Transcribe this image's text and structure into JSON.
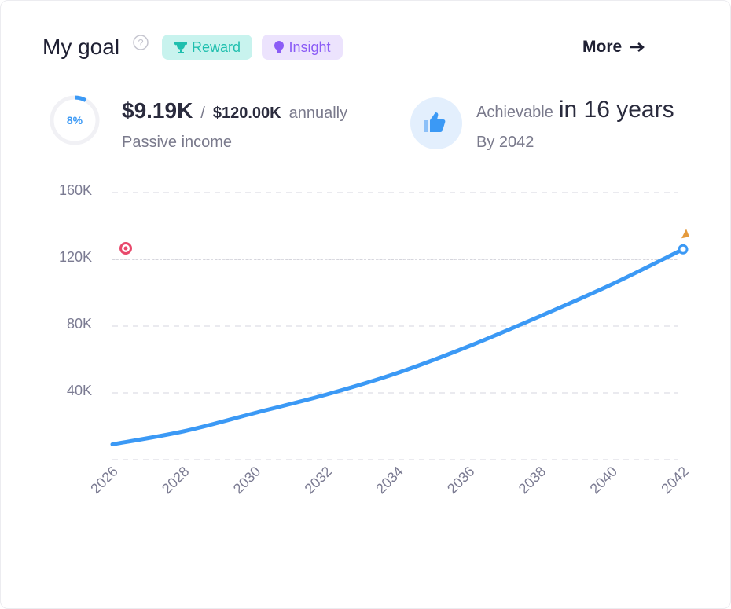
{
  "header": {
    "title": "My goal",
    "badges": [
      "Reward",
      "Insight"
    ],
    "more": "More"
  },
  "progress": {
    "value": 8,
    "label": "8%"
  },
  "income": {
    "current": "$9.19K",
    "separator": "/",
    "goal": "$120.00K",
    "period": "annually",
    "caption": "Passive income"
  },
  "forecast": {
    "prefix": "Achievable",
    "duration": "in 16 years",
    "caption": "By 2042"
  },
  "chart_data": {
    "type": "line",
    "x": [
      2026,
      2028,
      2030,
      2032,
      2034,
      2036,
      2038,
      2040,
      2042
    ],
    "values": [
      9.2,
      17,
      28,
      39,
      52,
      68,
      86,
      105,
      126
    ],
    "color": "#3b99f5",
    "target": 120,
    "xlim": [
      2026,
      2042
    ],
    "xticks": [
      2026,
      2028,
      2030,
      2032,
      2034,
      2036,
      2038,
      2040,
      2042
    ],
    "ylim": [
      0,
      160
    ],
    "yticks": [
      {
        "value": 40,
        "label": "40K"
      },
      {
        "value": 80,
        "label": "80K"
      },
      {
        "value": 120,
        "label": "120K"
      },
      {
        "value": 160,
        "label": "160K"
      }
    ],
    "grid": true
  }
}
